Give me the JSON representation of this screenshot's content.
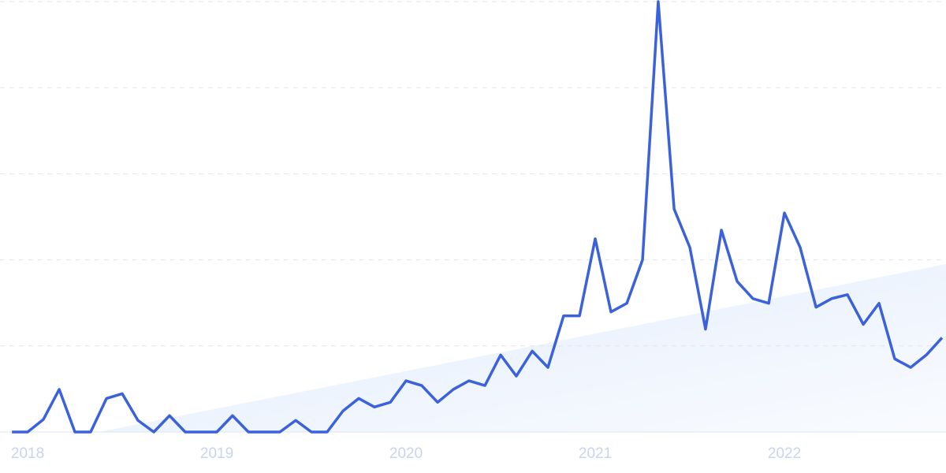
{
  "chart_data": {
    "type": "line",
    "x": [
      2017.917,
      2018,
      2018.083,
      2018.167,
      2018.25,
      2018.333,
      2018.417,
      2018.5,
      2018.583,
      2018.667,
      2018.75,
      2018.833,
      2018.917,
      2019,
      2019.083,
      2019.167,
      2019.25,
      2019.333,
      2019.417,
      2019.5,
      2019.583,
      2019.667,
      2019.75,
      2019.833,
      2019.917,
      2020,
      2020.083,
      2020.167,
      2020.25,
      2020.333,
      2020.417,
      2020.5,
      2020.583,
      2020.667,
      2020.75,
      2020.833,
      2020.917,
      2021,
      2021.083,
      2021.167,
      2021.25,
      2021.333,
      2021.417,
      2021.5,
      2021.583,
      2021.667,
      2021.75,
      2021.833,
      2021.917,
      2022,
      2022.083,
      2022.167,
      2022.25,
      2022.333,
      2022.417,
      2022.5,
      2022.583,
      2022.667,
      2022.75,
      2022.833
    ],
    "series": [
      {
        "color": "#3b62db",
        "values": [
          0,
          0,
          2.9,
          9.9,
          0,
          0,
          7.8,
          8.9,
          2.7,
          0,
          3.8,
          0,
          0,
          0,
          3.8,
          0,
          0,
          0,
          2.7,
          0,
          0,
          4.9,
          7.8,
          5.8,
          6.9,
          11.9,
          10.8,
          6.9,
          9.9,
          11.9,
          10.8,
          17.9,
          13,
          18.8,
          15,
          27,
          27,
          44.9,
          27.9,
          29.9,
          40,
          100,
          51.8,
          42.9,
          23.9,
          46.9,
          35,
          31,
          29.9,
          50.9,
          42.9,
          29,
          31,
          31.9,
          25,
          29.9,
          17,
          15,
          17.9,
          21.9
        ]
      }
    ],
    "trend": {
      "x": [
        2018.375,
        2022.854
      ],
      "values": [
        0,
        39
      ],
      "color": "#dbe8fb"
    },
    "xlim": [
      2017.854,
      2022.854
    ],
    "xticks": [
      2018,
      2019,
      2020,
      2021,
      2022
    ],
    "ylim": [
      0,
      100
    ],
    "yticks": [
      0,
      20,
      40,
      60,
      80,
      100
    ],
    "grid": true
  }
}
